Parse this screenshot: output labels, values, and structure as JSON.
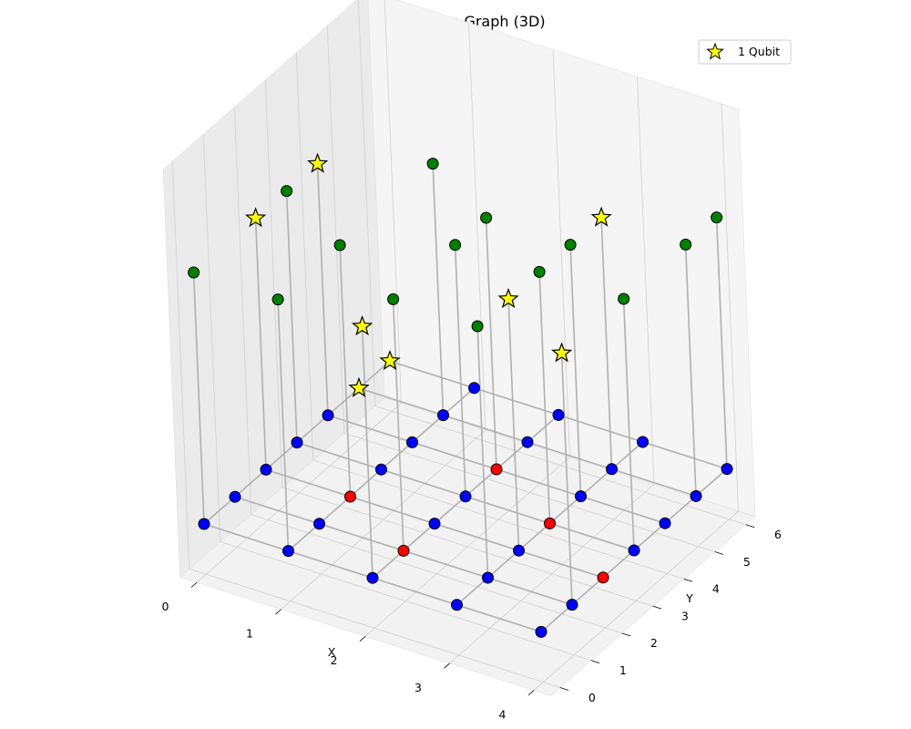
{
  "chart_data": {
    "type": "scatter",
    "title": "Penning Trap Graph (3D)",
    "xlabel": "X",
    "ylabel": "Y",
    "zlabel": "",
    "x_ticks": [
      0,
      1,
      2,
      3,
      4
    ],
    "y_ticks": [
      0,
      1,
      2,
      3,
      4,
      5,
      6
    ],
    "xlim": [
      -0.2,
      4.2
    ],
    "ylim": [
      -0.3,
      6.3
    ],
    "grid": true,
    "legend": {
      "placement": "top-right",
      "entries": [
        {
          "label": "1 Qubit",
          "marker": "star",
          "color": "#ffff00"
        }
      ]
    },
    "colors": {
      "base": "#0000ff",
      "red": "#ff0000",
      "top": "#008000",
      "qubit": "#ffff00",
      "edge": "#000000",
      "line": "#b0b0b0"
    },
    "red_nodes": [
      [
        1,
        2
      ],
      [
        2,
        1
      ],
      [
        2,
        4
      ],
      [
        3,
        3
      ],
      [
        4,
        2
      ]
    ],
    "top_nodes": [
      [
        0,
        0
      ],
      [
        0,
        3
      ],
      [
        1,
        0
      ],
      [
        1,
        2
      ],
      [
        1,
        5
      ],
      [
        2,
        1
      ],
      [
        2,
        3
      ],
      [
        2,
        4
      ],
      [
        3,
        1
      ],
      [
        3,
        3
      ],
      [
        3,
        4
      ],
      [
        4,
        3
      ],
      [
        4,
        5
      ],
      [
        4,
        6
      ]
    ],
    "qubit_nodes_top": [
      [
        0,
        2
      ],
      [
        2,
        0
      ],
      [
        3,
        2
      ],
      [
        4,
        1
      ],
      [
        0,
        4
      ],
      [
        3,
        5
      ]
    ],
    "qubit_nodes_base": [
      [
        0,
        5
      ],
      [
        0,
        6
      ]
    ],
    "edges": "grid"
  }
}
